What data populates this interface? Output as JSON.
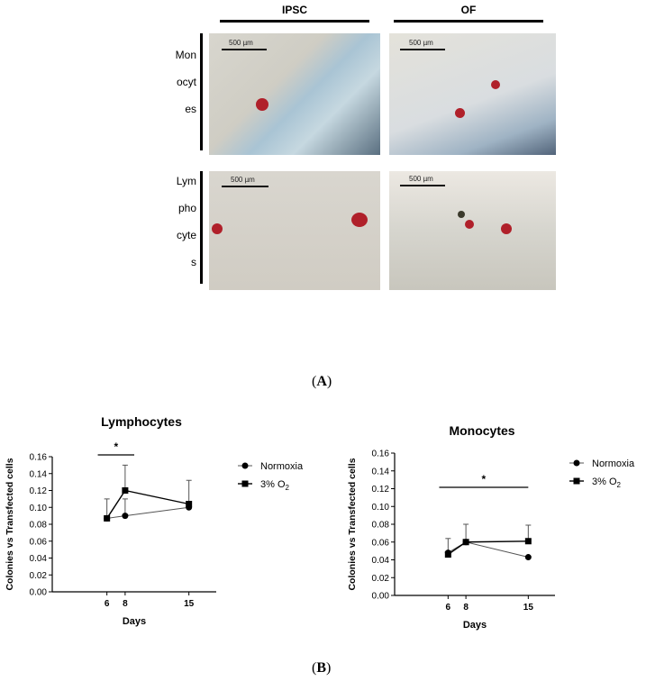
{
  "panel_a": {
    "columns": [
      "IPSC",
      "OF"
    ],
    "rows": [
      {
        "label_lines": [
          "Mon",
          "ocyt",
          "es"
        ]
      },
      {
        "label_lines": [
          "Lym",
          "pho",
          "cyte",
          "s"
        ]
      }
    ],
    "scale_bar": "500 µm",
    "caption": {
      "open": "(",
      "letter": "A",
      "close": ")"
    }
  },
  "panel_b": {
    "caption": {
      "open": "(",
      "letter": "B",
      "close": ")"
    }
  },
  "chart_data": [
    {
      "type": "line",
      "title": "Lymphocytes",
      "xlabel": "Days",
      "ylabel": "Colonies vs Transfected cells",
      "x": [
        6,
        8,
        15
      ],
      "xticks": [
        "6",
        "8",
        "15"
      ],
      "ylim": [
        0,
        0.16
      ],
      "yticks": [
        "0.00",
        "0.02",
        "0.04",
        "0.06",
        "0.08",
        "0.10",
        "0.12",
        "0.14",
        "0.16"
      ],
      "series": [
        {
          "name": "Normoxia",
          "marker": "circle",
          "values": [
            0.087,
            0.09,
            0.1
          ],
          "errors": [
            0.023,
            0.02,
            0.0
          ]
        },
        {
          "name": "3% O2",
          "marker": "square",
          "values": [
            0.087,
            0.12,
            0.104
          ],
          "errors": [
            0.0,
            0.03,
            0.028
          ]
        }
      ],
      "significance": {
        "label": "*",
        "from": 5,
        "to": 9
      },
      "legend": "right"
    },
    {
      "type": "line",
      "title": "Monocytes",
      "xlabel": "Days",
      "ylabel": "Colonies vs Transfected cells",
      "x": [
        6,
        8,
        15
      ],
      "xticks": [
        "6",
        "8",
        "15"
      ],
      "ylim": [
        0,
        0.16
      ],
      "yticks": [
        "0.00",
        "0.02",
        "0.04",
        "0.06",
        "0.08",
        "0.10",
        "0.12",
        "0.14",
        "0.16"
      ],
      "series": [
        {
          "name": "Normoxia",
          "marker": "circle",
          "values": [
            0.048,
            0.06,
            0.043
          ],
          "errors": [
            0.016,
            0.02,
            0.0
          ]
        },
        {
          "name": "3% O2",
          "marker": "square",
          "values": [
            0.046,
            0.06,
            0.061
          ],
          "errors": [
            0.0,
            0.0,
            0.018
          ]
        }
      ],
      "significance": {
        "label": "*",
        "from": 5,
        "to": 15
      },
      "legend": "right"
    }
  ]
}
